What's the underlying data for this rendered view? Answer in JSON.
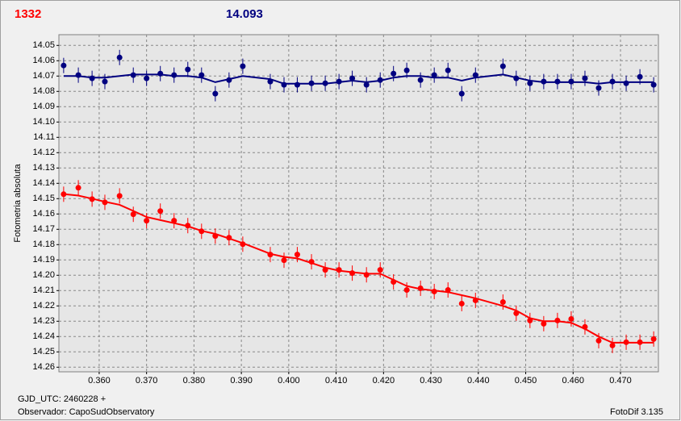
{
  "chart_data": {
    "type": "scatter",
    "title": "1332",
    "subtitle": "14.093",
    "y_label": "Fotometria absoluta",
    "x_label": "GJD_UTC: 2460228 +",
    "observer": "Observador: CapoSudObservatory",
    "software": "FotoDif 3.135",
    "title_color": "#ff0000",
    "subtitle_color": "#000080",
    "grid": true,
    "xlim": [
      0.3515,
      0.478
    ],
    "ylim": [
      14.263,
      14.043
    ],
    "xticks": [
      {
        "value": 0.36,
        "label": "0.360"
      },
      {
        "value": 0.37,
        "label": "0.370"
      },
      {
        "value": 0.38,
        "label": "0.380"
      },
      {
        "value": 0.39,
        "label": "0.390"
      },
      {
        "value": 0.4,
        "label": "0.400"
      },
      {
        "value": 0.41,
        "label": "0.410"
      },
      {
        "value": 0.42,
        "label": "0.420"
      },
      {
        "value": 0.43,
        "label": "0.430"
      },
      {
        "value": 0.44,
        "label": "0.440"
      },
      {
        "value": 0.45,
        "label": "0.450"
      },
      {
        "value": 0.46,
        "label": "0.460"
      },
      {
        "value": 0.47,
        "label": "0.470"
      }
    ],
    "yticks": [
      14.05,
      14.06,
      14.07,
      14.08,
      14.09,
      {
        "value": 14.1,
        "label": "14.10"
      },
      14.11,
      14.12,
      14.13,
      14.14,
      14.15,
      14.16,
      14.17,
      14.18,
      14.19,
      {
        "value": 14.2,
        "label": "14.20"
      },
      14.21,
      14.22,
      14.23,
      14.24,
      14.25,
      14.26
    ],
    "x": [
      0.3525,
      0.3556,
      0.3585,
      0.3612,
      0.3643,
      0.3672,
      0.37,
      0.3729,
      0.3758,
      0.3787,
      0.3816,
      0.3845,
      0.3874,
      0.3903,
      0.3961,
      0.399,
      0.4018,
      0.4048,
      0.4077,
      0.4106,
      0.4134,
      0.4164,
      0.4193,
      0.4221,
      0.4249,
      0.4278,
      0.4307,
      0.4336,
      0.4365,
      0.4394,
      0.4452,
      0.448,
      0.4509,
      0.4538,
      0.4567,
      0.4596,
      0.4625,
      0.4654,
      0.4683,
      0.4712,
      0.4741,
      0.477
    ],
    "series": [
      {
        "color": "#000080",
        "error": 0.005,
        "values": [
          14.0631,
          14.0694,
          14.0715,
          14.0736,
          14.0579,
          14.0694,
          14.0715,
          14.0684,
          14.0694,
          14.0657,
          14.0694,
          14.0815,
          14.0726,
          14.0636,
          14.0736,
          14.0757,
          14.0757,
          14.0747,
          14.0747,
          14.0736,
          14.0715,
          14.0757,
          14.0726,
          14.0684,
          14.0663,
          14.0726,
          14.0694,
          14.0663,
          14.0815,
          14.0694,
          14.0636,
          14.0715,
          14.0747,
          14.0736,
          14.0736,
          14.0736,
          14.0715,
          14.0778,
          14.0736,
          14.0747,
          14.0705,
          14.0757
        ],
        "fit": [
          14.07,
          14.07,
          14.071,
          14.071,
          14.07,
          14.069,
          14.069,
          14.069,
          14.07,
          14.07,
          14.071,
          14.074,
          14.072,
          14.07,
          14.072,
          14.075,
          14.075,
          14.075,
          14.075,
          14.074,
          14.073,
          14.074,
          14.073,
          14.071,
          14.07,
          14.07,
          14.071,
          14.071,
          14.073,
          14.071,
          14.069,
          14.071,
          14.073,
          14.074,
          14.074,
          14.074,
          14.074,
          14.075,
          14.074,
          14.074,
          14.074,
          14.074
        ]
      },
      {
        "color": "#ff0000",
        "error": 0.005,
        "values": [
          14.1471,
          14.1429,
          14.1503,
          14.1524,
          14.1482,
          14.1602,
          14.1644,
          14.1581,
          14.1644,
          14.1676,
          14.1713,
          14.1744,
          14.1755,
          14.1797,
          14.1865,
          14.1902,
          14.1865,
          14.1912,
          14.1965,
          14.1965,
          14.1986,
          14.1997,
          14.1965,
          14.2043,
          14.2096,
          14.2085,
          14.2106,
          14.2096,
          14.2185,
          14.2164,
          14.2175,
          14.2248,
          14.2295,
          14.2316,
          14.2295,
          14.2285,
          14.2337,
          14.2427,
          14.2458,
          14.2437,
          14.2437,
          14.2416
        ],
        "fit": [
          14.147,
          14.148,
          14.15,
          14.152,
          14.154,
          14.158,
          14.162,
          14.164,
          14.166,
          14.168,
          14.171,
          14.173,
          14.176,
          14.179,
          14.186,
          14.188,
          14.189,
          14.192,
          14.195,
          14.197,
          14.198,
          14.199,
          14.199,
          14.203,
          14.207,
          14.209,
          14.21,
          14.211,
          14.213,
          14.215,
          14.22,
          14.223,
          14.228,
          14.23,
          14.23,
          14.231,
          14.235,
          14.24,
          14.244,
          14.244,
          14.244,
          14.244
        ]
      }
    ]
  }
}
